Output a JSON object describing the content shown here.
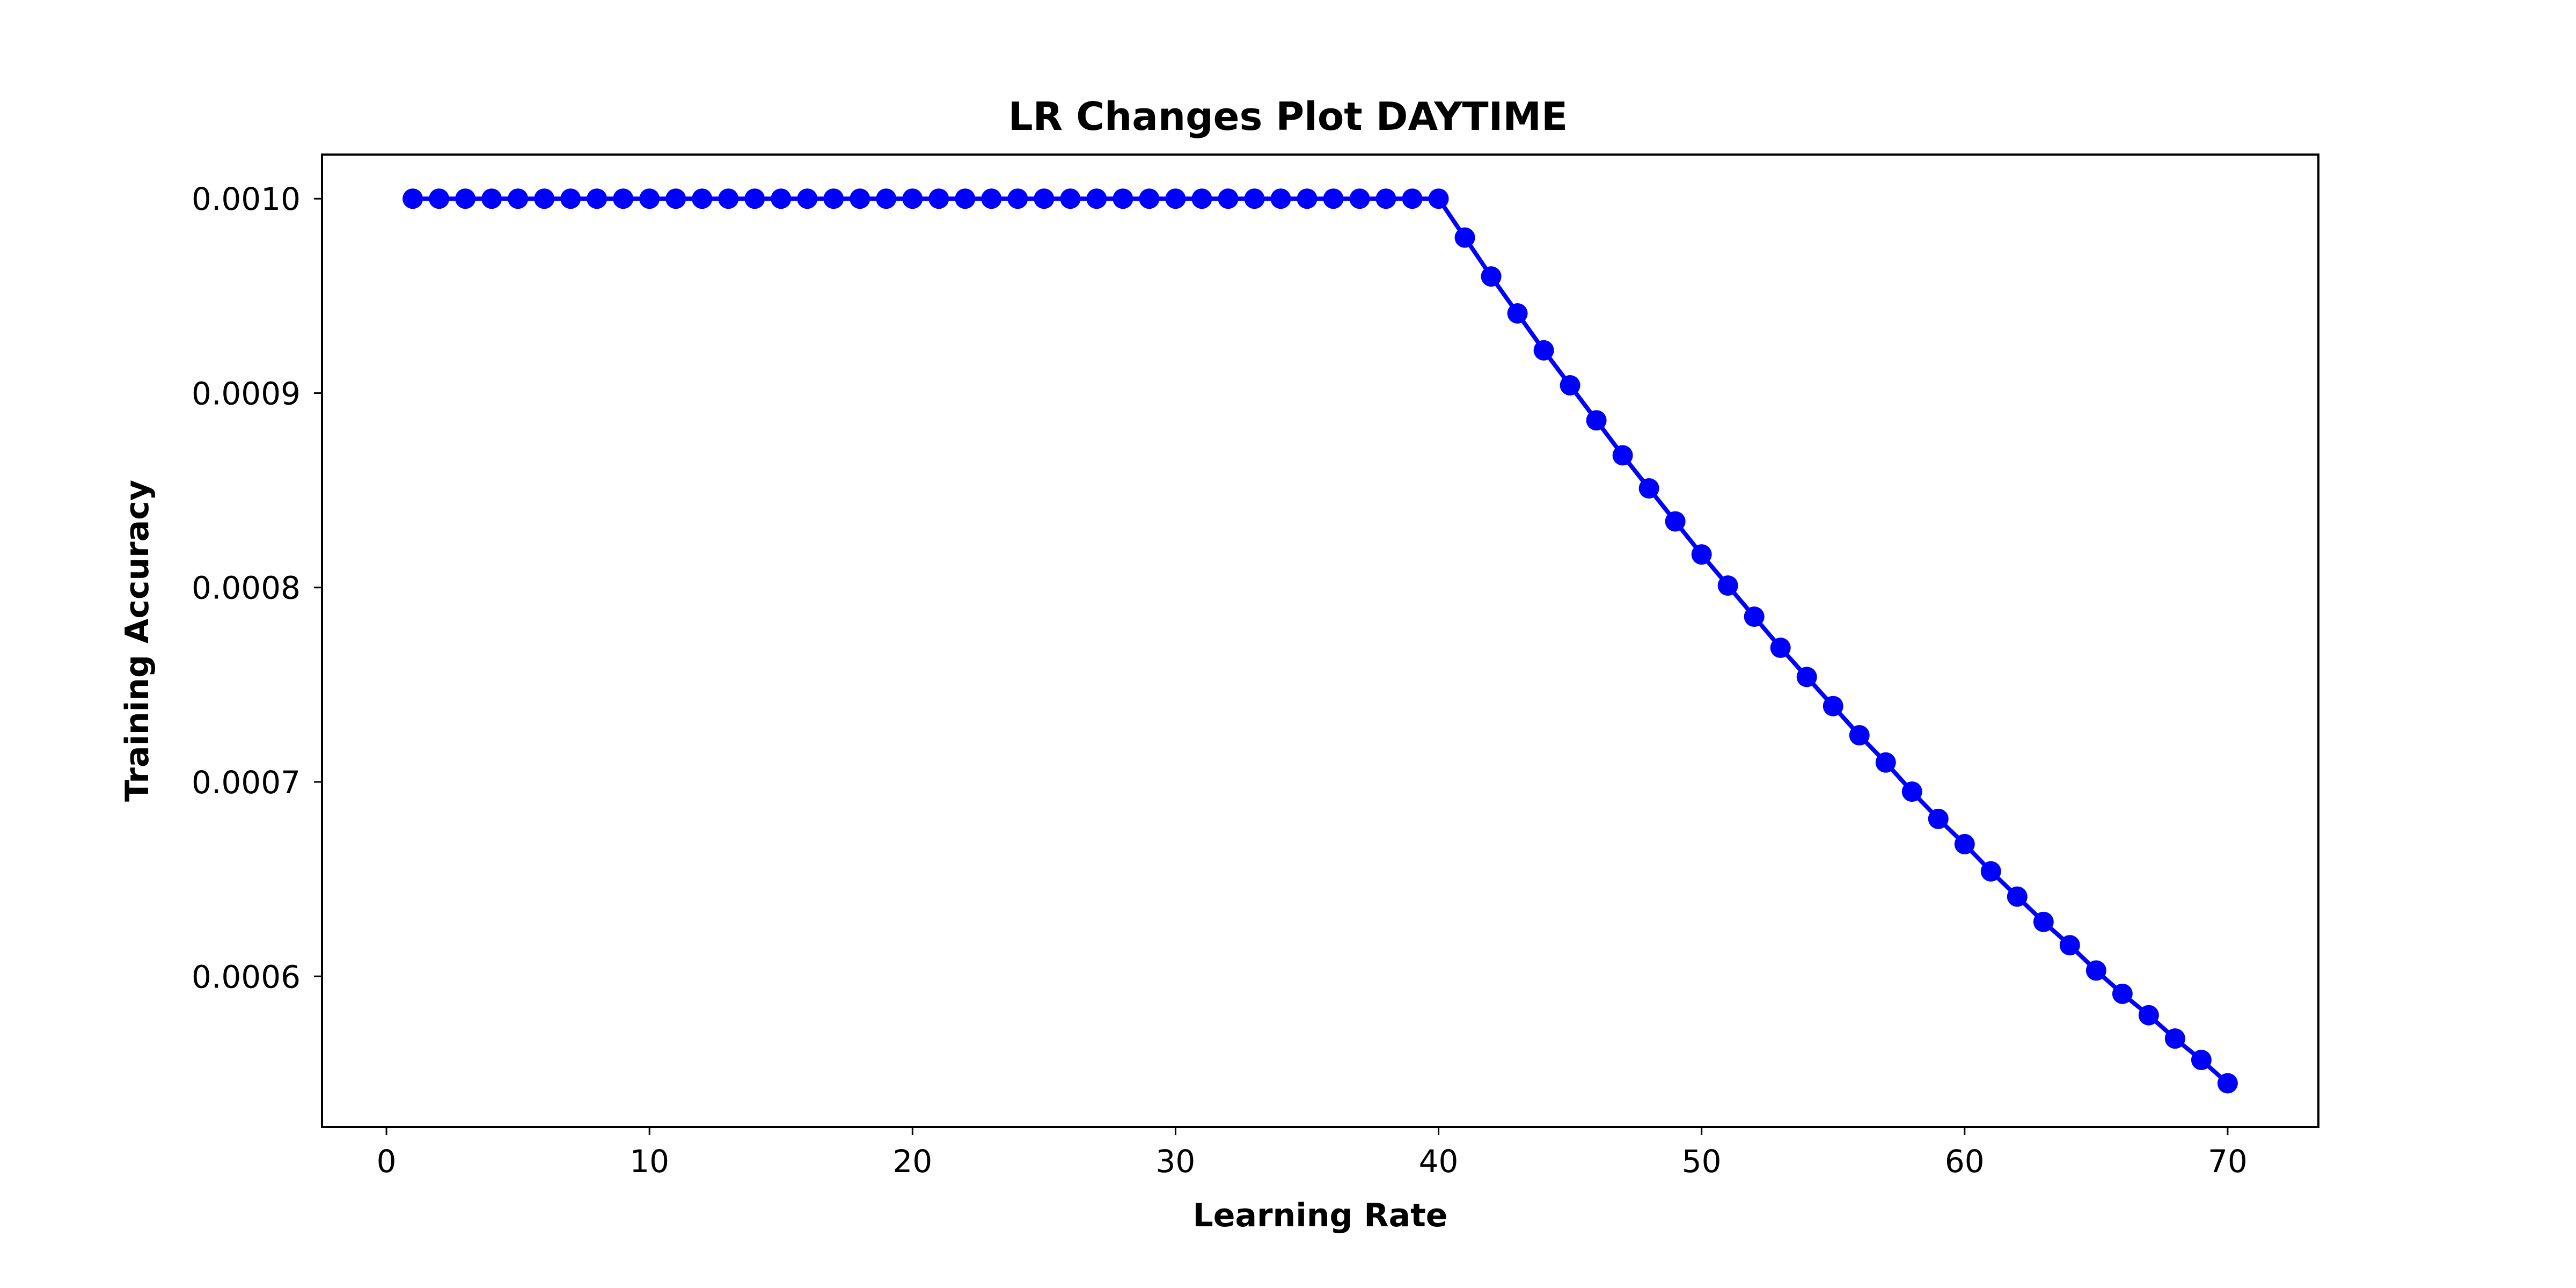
{
  "chart_data": {
    "type": "line",
    "title": "LR Changes Plot DAYTIME",
    "xlabel": "Learning Rate",
    "ylabel": "Training Accuracy",
    "xlim": [
      -2.45,
      73.45
    ],
    "ylim": [
      0.0005225,
      0.0010227
    ],
    "xticks": [
      0,
      10,
      20,
      30,
      40,
      50,
      60,
      70
    ],
    "xtick_labels": [
      "0",
      "10",
      "20",
      "30",
      "40",
      "50",
      "60",
      "70"
    ],
    "yticks": [
      0.0006,
      0.0007,
      0.0008,
      0.0009,
      0.001
    ],
    "ytick_labels": [
      "0.0006",
      "0.0007",
      "0.0008",
      "0.0009",
      "0.0010"
    ],
    "grid": false,
    "color": "#0000ff",
    "marker": "circle",
    "series": [
      {
        "x": [
          1,
          2,
          3,
          4,
          5,
          6,
          7,
          8,
          9,
          10,
          11,
          12,
          13,
          14,
          15,
          16,
          17,
          18,
          19,
          20,
          21,
          22,
          23,
          24,
          25,
          26,
          27,
          28,
          29,
          30,
          31,
          32,
          33,
          34,
          35,
          36,
          37,
          38,
          39,
          40,
          41,
          42,
          43,
          44,
          45,
          46,
          47,
          48,
          49,
          50,
          51,
          52,
          53,
          54,
          55,
          56,
          57,
          58,
          59,
          60,
          61,
          62,
          63,
          64,
          65,
          66,
          67,
          68,
          69,
          70
        ],
        "values": [
          0.001,
          0.001,
          0.001,
          0.001,
          0.001,
          0.001,
          0.001,
          0.001,
          0.001,
          0.001,
          0.001,
          0.001,
          0.001,
          0.001,
          0.001,
          0.001,
          0.001,
          0.001,
          0.001,
          0.001,
          0.001,
          0.001,
          0.001,
          0.001,
          0.001,
          0.001,
          0.001,
          0.001,
          0.001,
          0.001,
          0.001,
          0.001,
          0.001,
          0.001,
          0.001,
          0.001,
          0.001,
          0.001,
          0.001,
          0.001,
          0.00098,
          0.00096,
          0.000941,
          0.000922,
          0.000904,
          0.000886,
          0.000868,
          0.000851,
          0.000834,
          0.000817,
          0.000801,
          0.000785,
          0.000769,
          0.000754,
          0.000739,
          0.000724,
          0.00071,
          0.000695,
          0.000681,
          0.000668,
          0.000654,
          0.000641,
          0.000628,
          0.000616,
          0.000603,
          0.000591,
          0.00058,
          0.000568,
          0.000557,
          0.000545
        ]
      }
    ]
  }
}
